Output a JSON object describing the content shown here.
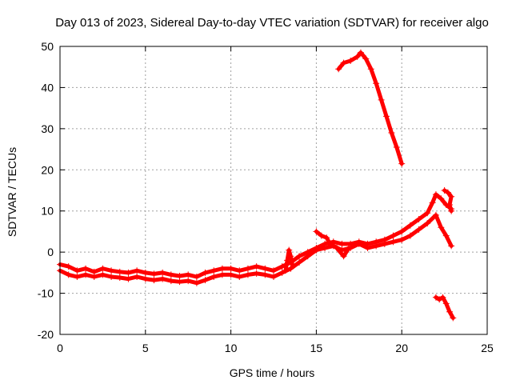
{
  "chart_data": {
    "type": "scatter",
    "title": "Day 013 of 2023, Sidereal Day-to-day VTEC variation (SDTVAR) for receiver algo",
    "xlabel": "GPS time / hours",
    "ylabel": "SDTVAR / TECUs",
    "xlim": [
      0,
      25
    ],
    "ylim": [
      -20,
      50
    ],
    "xticks": [
      0,
      5,
      10,
      15,
      20,
      25
    ],
    "yticks": [
      -20,
      -10,
      0,
      10,
      20,
      30,
      40,
      50
    ],
    "grid": true,
    "marker": "plus",
    "color": "#ff0000",
    "series": [
      {
        "name": "main-band-upper",
        "points": [
          [
            0.0,
            -3.0
          ],
          [
            0.5,
            -3.5
          ],
          [
            1.0,
            -4.5
          ],
          [
            1.5,
            -4.0
          ],
          [
            2.0,
            -4.8
          ],
          [
            2.5,
            -4.0
          ],
          [
            3.0,
            -4.5
          ],
          [
            3.5,
            -4.8
          ],
          [
            4.0,
            -5.0
          ],
          [
            4.5,
            -4.5
          ],
          [
            5.0,
            -5.0
          ],
          [
            5.5,
            -5.3
          ],
          [
            6.0,
            -5.0
          ],
          [
            6.5,
            -5.5
          ],
          [
            7.0,
            -5.8
          ],
          [
            7.5,
            -5.5
          ],
          [
            8.0,
            -6.0
          ],
          [
            8.5,
            -5.0
          ],
          [
            9.0,
            -4.5
          ],
          [
            9.5,
            -4.0
          ],
          [
            10.0,
            -4.0
          ],
          [
            10.5,
            -4.5
          ],
          [
            11.0,
            -4.0
          ],
          [
            11.5,
            -3.5
          ],
          [
            12.0,
            -4.0
          ],
          [
            12.5,
            -4.5
          ],
          [
            13.0,
            -3.5
          ],
          [
            13.5,
            -2.5
          ],
          [
            14.0,
            -1.0
          ],
          [
            14.5,
            0.0
          ],
          [
            15.0,
            1.0
          ],
          [
            15.5,
            2.0
          ],
          [
            16.0,
            2.5
          ],
          [
            16.5,
            2.0
          ],
          [
            17.0,
            2.0
          ],
          [
            17.5,
            2.5
          ],
          [
            18.0,
            2.0
          ],
          [
            18.5,
            2.5
          ],
          [
            19.0,
            3.0
          ],
          [
            19.5,
            4.0
          ],
          [
            20.0,
            5.0
          ],
          [
            20.5,
            6.5
          ],
          [
            21.0,
            8.0
          ],
          [
            21.5,
            9.5
          ],
          [
            21.8,
            12.0
          ],
          [
            22.0,
            14.0
          ],
          [
            22.3,
            13.0
          ],
          [
            22.6,
            11.5
          ],
          [
            22.9,
            10.5
          ]
        ]
      },
      {
        "name": "main-band-lower",
        "points": [
          [
            0.0,
            -4.5
          ],
          [
            0.5,
            -5.5
          ],
          [
            1.0,
            -6.0
          ],
          [
            1.5,
            -5.5
          ],
          [
            2.0,
            -6.0
          ],
          [
            2.5,
            -5.5
          ],
          [
            3.0,
            -6.0
          ],
          [
            3.5,
            -6.2
          ],
          [
            4.0,
            -6.5
          ],
          [
            4.5,
            -6.0
          ],
          [
            5.0,
            -6.5
          ],
          [
            5.5,
            -6.8
          ],
          [
            6.0,
            -6.5
          ],
          [
            6.5,
            -7.0
          ],
          [
            7.0,
            -7.2
          ],
          [
            7.5,
            -7.0
          ],
          [
            8.0,
            -7.5
          ],
          [
            8.5,
            -6.8
          ],
          [
            9.0,
            -6.0
          ],
          [
            9.5,
            -5.5
          ],
          [
            10.0,
            -5.5
          ],
          [
            10.5,
            -6.0
          ],
          [
            11.0,
            -5.5
          ],
          [
            11.5,
            -5.2
          ],
          [
            12.0,
            -5.5
          ],
          [
            12.5,
            -6.0
          ],
          [
            13.0,
            -5.0
          ],
          [
            13.5,
            -4.0
          ],
          [
            14.0,
            -2.5
          ],
          [
            14.5,
            -1.0
          ],
          [
            15.0,
            0.5
          ],
          [
            15.5,
            1.0
          ],
          [
            16.0,
            1.5
          ],
          [
            16.5,
            0.5
          ],
          [
            17.0,
            1.0
          ],
          [
            17.5,
            2.0
          ],
          [
            18.0,
            1.0
          ],
          [
            18.5,
            1.5
          ],
          [
            19.0,
            2.0
          ],
          [
            19.5,
            2.5
          ],
          [
            20.0,
            3.0
          ],
          [
            20.5,
            4.0
          ],
          [
            21.0,
            5.5
          ],
          [
            21.5,
            7.0
          ],
          [
            22.0,
            9.0
          ],
          [
            22.3,
            6.0
          ],
          [
            22.6,
            4.0
          ],
          [
            22.9,
            1.5
          ]
        ]
      },
      {
        "name": "spike-13h",
        "points": [
          [
            13.2,
            -4.5
          ],
          [
            13.3,
            -2.0
          ],
          [
            13.4,
            0.5
          ],
          [
            13.5,
            -1.0
          ],
          [
            13.6,
            -3.0
          ]
        ]
      },
      {
        "name": "spike-15h",
        "points": [
          [
            15.0,
            5.0
          ],
          [
            15.3,
            4.0
          ],
          [
            15.6,
            3.5
          ],
          [
            15.8,
            2.0
          ],
          [
            16.2,
            1.0
          ],
          [
            16.6,
            -1.0
          ],
          [
            16.9,
            1.0
          ]
        ]
      },
      {
        "name": "upper-arc",
        "points": [
          [
            16.3,
            44.5
          ],
          [
            16.6,
            46.0
          ],
          [
            17.0,
            46.5
          ],
          [
            17.4,
            47.5
          ],
          [
            17.6,
            48.5
          ],
          [
            17.9,
            47.0
          ],
          [
            18.2,
            44.5
          ],
          [
            18.5,
            41.0
          ],
          [
            18.8,
            37.0
          ],
          [
            19.1,
            33.0
          ],
          [
            19.4,
            29.0
          ],
          [
            19.7,
            25.5
          ],
          [
            20.0,
            21.5
          ]
        ]
      },
      {
        "name": "lower-arc",
        "points": [
          [
            22.0,
            -11.0
          ],
          [
            22.2,
            -11.5
          ],
          [
            22.4,
            -11.0
          ],
          [
            22.6,
            -12.5
          ],
          [
            22.8,
            -14.5
          ],
          [
            23.0,
            -16.0
          ]
        ]
      },
      {
        "name": "right-tail",
        "points": [
          [
            22.5,
            15.0
          ],
          [
            22.7,
            14.5
          ],
          [
            22.9,
            13.5
          ],
          [
            22.8,
            11.5
          ],
          [
            22.9,
            10.0
          ]
        ]
      }
    ]
  }
}
